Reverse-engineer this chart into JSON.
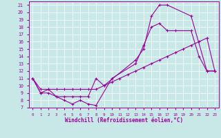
{
  "xlabel": "Windchill (Refroidissement éolien,°C)",
  "bg_color": "#c8e8e8",
  "line_color": "#990099",
  "xlim": [
    -0.5,
    23.5
  ],
  "ylim": [
    7,
    21.5
  ],
  "xticks": [
    0,
    1,
    2,
    3,
    4,
    5,
    6,
    7,
    8,
    9,
    10,
    11,
    12,
    13,
    14,
    15,
    16,
    17,
    18,
    19,
    20,
    21,
    22,
    23
  ],
  "yticks": [
    7,
    8,
    9,
    10,
    11,
    12,
    13,
    14,
    15,
    16,
    17,
    18,
    19,
    20,
    21
  ],
  "line1_x": [
    0,
    1,
    2,
    3,
    4,
    5,
    6,
    7,
    8,
    9,
    13,
    14,
    15,
    16,
    17,
    20,
    22,
    23
  ],
  "line1_y": [
    11,
    9,
    9.5,
    8.5,
    8.5,
    8.5,
    8.5,
    8.5,
    11,
    10,
    13.5,
    15,
    19.5,
    21,
    21,
    19.5,
    12,
    12
  ],
  "line2_x": [
    0,
    1,
    2,
    3,
    4,
    5,
    6,
    7,
    8,
    10,
    13,
    14,
    15,
    16,
    17,
    18,
    20,
    21,
    22,
    23
  ],
  "line2_y": [
    11,
    9,
    9,
    8.5,
    8,
    7.5,
    8,
    7.5,
    7.3,
    11,
    13,
    15.5,
    18,
    18.5,
    17.5,
    17.5,
    17.5,
    14,
    12,
    12
  ],
  "line3_x": [
    0,
    1,
    2,
    3,
    4,
    5,
    6,
    7,
    8,
    9,
    10,
    11,
    12,
    13,
    14,
    15,
    16,
    17,
    18,
    19,
    20,
    21,
    22,
    23
  ],
  "line3_y": [
    11,
    9.5,
    9.5,
    9.5,
    9.5,
    9.5,
    9.5,
    9.5,
    9.5,
    10,
    10.5,
    11,
    11.5,
    12,
    12.5,
    13,
    13.5,
    14,
    14.5,
    15,
    15.5,
    16,
    16.5,
    12
  ]
}
